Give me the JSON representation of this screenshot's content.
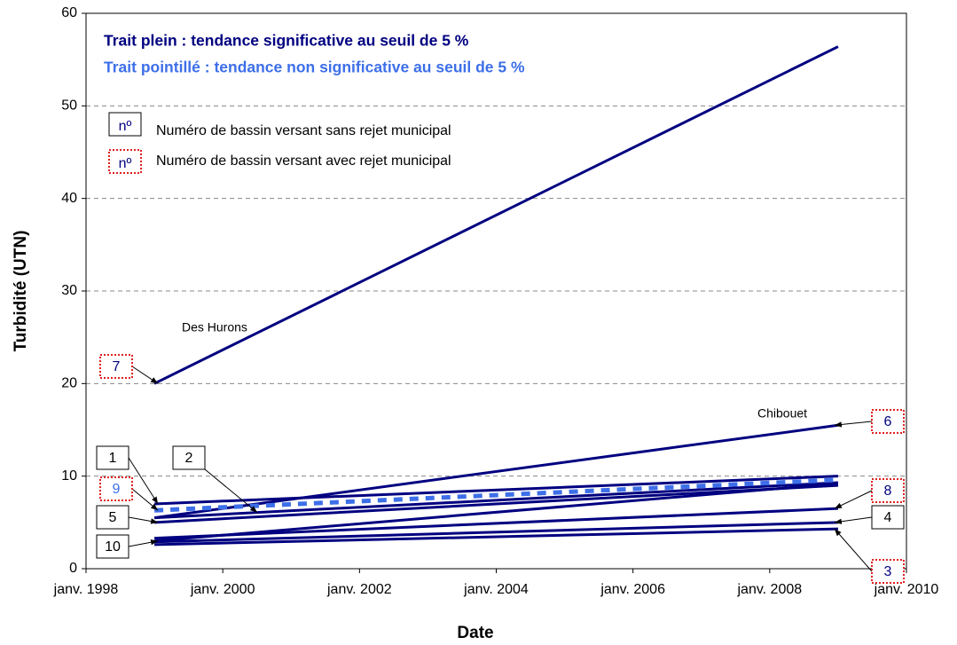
{
  "chart_data": {
    "type": "line",
    "x_label": "Date",
    "y_label": "Turbidité (UTN)",
    "x": [
      "1999-01",
      "2009-01"
    ],
    "xlim": [
      "1998-01",
      "2010-01"
    ],
    "xticks": [
      {
        "value": "1998-01",
        "label": "janv. 1998"
      },
      {
        "value": "2000-01",
        "label": "janv. 2000"
      },
      {
        "value": "2002-01",
        "label": "janv. 2002"
      },
      {
        "value": "2004-01",
        "label": "janv. 2004"
      },
      {
        "value": "2006-01",
        "label": "janv. 2006"
      },
      {
        "value": "2008-01",
        "label": "janv. 2008"
      },
      {
        "value": "2010-01",
        "label": "janv. 2010"
      }
    ],
    "ylim": [
      0,
      60
    ],
    "yticks": [
      0,
      10,
      20,
      30,
      40,
      50,
      60
    ],
    "grid": true,
    "legend": [
      {
        "text": "Trait plein :  tendance significative au seuil de 5 %",
        "color": "#000080"
      },
      {
        "text": "Trait pointillé :  tendance non significative au seuil de 5 %",
        "color": "#3d6fe8"
      }
    ],
    "box_legend": {
      "symbol": "nº",
      "without": "Numéro de bassin versant sans rejet municipal",
      "with": "Numéro de bassin versant avec rejet municipal"
    },
    "annotations": [
      "Des Hurons",
      "Chibouet"
    ],
    "series": [
      {
        "name": "1",
        "color": "#000080",
        "dashed": false,
        "municipal": false,
        "values": [
          7.0,
          10.0
        ]
      },
      {
        "name": "2",
        "color": "#000080",
        "dashed": false,
        "municipal": false,
        "values": [
          5.5,
          9.3
        ]
      },
      {
        "name": "3",
        "color": "#000080",
        "dashed": false,
        "municipal": true,
        "values": [
          2.6,
          4.3
        ]
      },
      {
        "name": "4",
        "color": "#000080",
        "dashed": false,
        "municipal": false,
        "values": [
          2.9,
          5.0
        ]
      },
      {
        "name": "5",
        "color": "#000080",
        "dashed": false,
        "municipal": false,
        "values": [
          5.0,
          9.0
        ]
      },
      {
        "name": "6",
        "color": "#000080",
        "dashed": false,
        "municipal": true,
        "values": [
          5.5,
          15.5
        ]
      },
      {
        "name": "7",
        "color": "#000080",
        "dashed": false,
        "municipal": true,
        "values": [
          20.0,
          56.4
        ]
      },
      {
        "name": "8",
        "color": "#000080",
        "dashed": false,
        "municipal": true,
        "values": [
          3.3,
          6.5
        ]
      },
      {
        "name": "9",
        "color": "#3d6fe8",
        "dashed": true,
        "municipal": true,
        "values": [
          6.3,
          9.6
        ]
      },
      {
        "name": "10",
        "color": "#000080",
        "dashed": false,
        "municipal": false,
        "values": [
          3.0,
          9.2
        ]
      }
    ]
  }
}
